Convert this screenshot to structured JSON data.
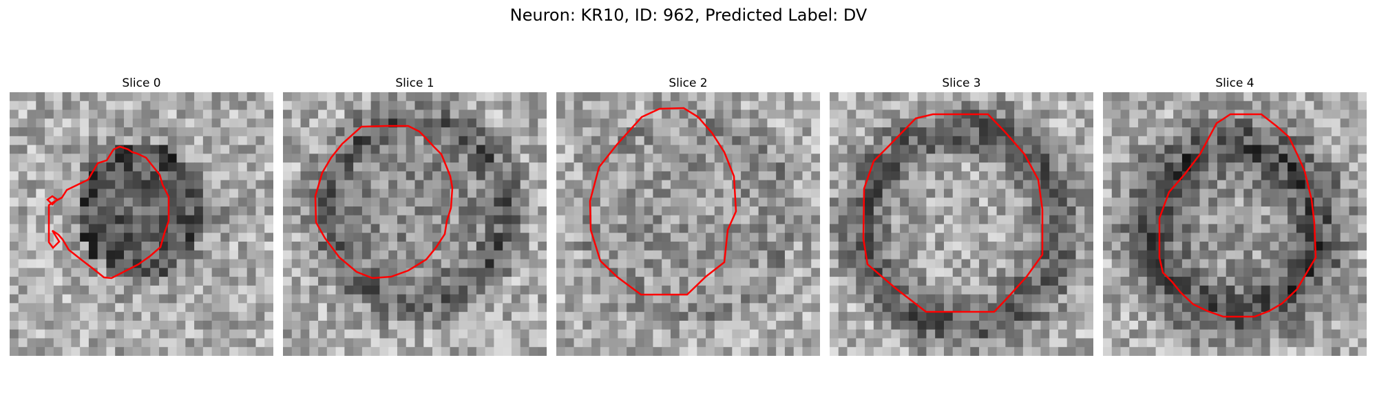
{
  "figure": {
    "title": "Neuron: KR10, ID: 962, Predicted Label: DV"
  },
  "slices": [
    {
      "label": "Slice 0"
    },
    {
      "label": "Slice 1"
    },
    {
      "label": "Slice 2"
    },
    {
      "label": "Slice 3"
    },
    {
      "label": "Slice 4"
    }
  ],
  "colors": {
    "contour": "#ff0000",
    "colormap": "gray",
    "background": "#ffffff"
  }
}
